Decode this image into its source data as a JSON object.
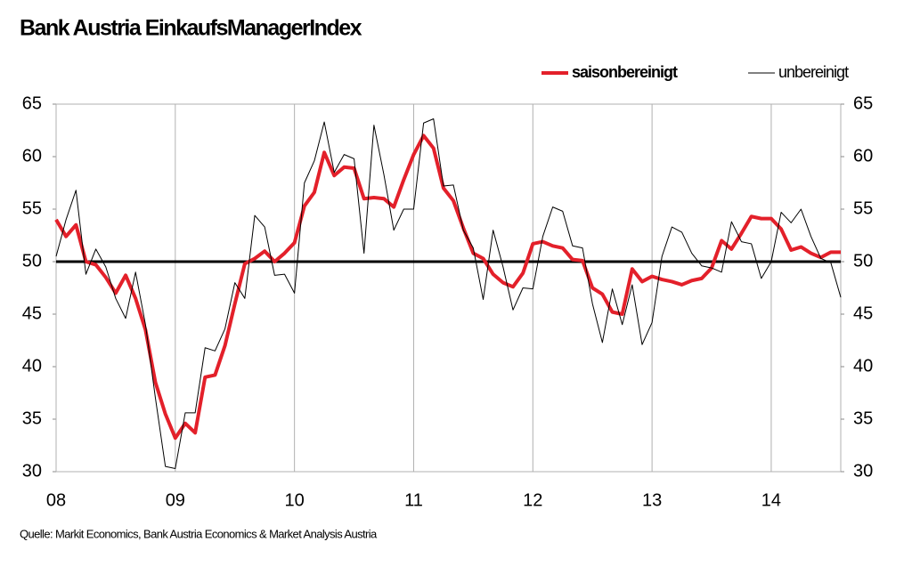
{
  "chart_data": {
    "type": "line",
    "title": "Bank Austria EinkaufsManagerIndex",
    "source": "Quelle: Markit Economics, Bank Austria Economics & Market Analysis Austria",
    "categories": [
      "08",
      null,
      null,
      null,
      null,
      null,
      null,
      null,
      null,
      null,
      null,
      null,
      "09",
      null,
      null,
      null,
      null,
      null,
      null,
      null,
      null,
      null,
      null,
      null,
      "10",
      null,
      null,
      null,
      null,
      null,
      null,
      null,
      null,
      null,
      null,
      null,
      "11",
      null,
      null,
      null,
      null,
      null,
      null,
      null,
      null,
      null,
      null,
      null,
      "12",
      null,
      null,
      null,
      null,
      null,
      null,
      null,
      null,
      null,
      null,
      null,
      "13",
      null,
      null,
      null,
      null,
      null,
      null,
      null,
      null,
      null,
      null,
      null,
      "14",
      null,
      null,
      null,
      null,
      null,
      null,
      null
    ],
    "series": [
      {
        "name": "saisonbereinigt",
        "color": "#e3202a",
        "width": 4,
        "values": [
          54,
          52.4,
          53.5,
          50,
          49.7,
          48.5,
          47,
          48.7,
          46.5,
          43.5,
          38.5,
          35.5,
          33.2,
          34.6,
          33.7,
          39,
          39.2,
          42,
          46,
          49.8,
          50.3,
          51,
          50,
          50.8,
          51.8,
          55.3,
          56.6,
          60.4,
          58.2,
          59,
          58.9,
          56,
          56.1,
          56,
          55.2,
          57.8,
          60.2,
          62,
          60.8,
          57,
          55.8,
          53.2,
          50.8,
          50.3,
          48.8,
          48,
          47.6,
          48.9,
          51.7,
          51.9,
          51.5,
          51.3,
          50.2,
          50.1,
          47.5,
          46.9,
          45.2,
          45,
          49.3,
          48.1,
          48.6,
          48.3,
          48.1,
          47.8,
          48.2,
          48.4,
          49.4,
          52,
          51.2,
          52.7,
          54.3,
          54.1,
          54.1,
          53.1,
          51.1,
          51.4,
          50.8,
          50.4,
          50.9,
          50.9
        ]
      },
      {
        "name": "unbereinigt",
        "color": "#000000",
        "width": 1,
        "values": [
          50.5,
          54,
          56.8,
          48.8,
          51.2,
          49.5,
          46.5,
          44.6,
          49,
          44,
          37,
          30.5,
          30.3,
          35.6,
          35.6,
          41.8,
          41.5,
          43.6,
          48,
          46.5,
          54.4,
          53.3,
          48.7,
          48.8,
          47,
          57.5,
          59.6,
          63.3,
          58.5,
          60.2,
          59.8,
          50.8,
          63,
          58.3,
          53,
          55,
          55,
          63.2,
          63.6,
          57.2,
          57.3,
          53,
          51.3,
          46.4,
          53,
          49.5,
          45.4,
          47.5,
          47.4,
          52.4,
          55.2,
          54.8,
          51.5,
          51.3,
          46,
          42.3,
          47.4,
          44,
          47.8,
          42.1,
          44.2,
          50.5,
          53.3,
          52.8,
          50.8,
          49.6,
          49.4,
          49,
          53.8,
          51.9,
          51.7,
          48.4,
          50,
          54.7,
          53.7,
          55,
          52.4,
          50.3,
          49.9,
          46.6
        ]
      }
    ],
    "ylim": [
      30,
      65
    ],
    "yticks": [
      30,
      35,
      40,
      45,
      50,
      55,
      60,
      65
    ],
    "y2lim": [
      30,
      65
    ],
    "y2ticks": [
      30,
      35,
      40,
      45,
      50,
      55,
      60,
      65
    ],
    "reference_line": 50,
    "grid": "x",
    "legend": "top-right"
  }
}
